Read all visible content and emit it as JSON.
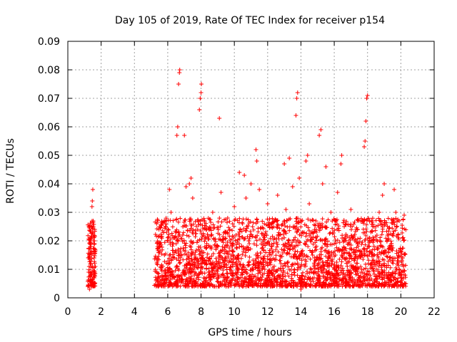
{
  "chart_data": {
    "type": "scatter",
    "title": "Day 105 of 2019, Rate Of TEC Index for receiver p154",
    "xlabel": "GPS time / hours",
    "ylabel": "ROTI / TECUs",
    "xlim": [
      0,
      22
    ],
    "ylim": [
      0,
      0.09
    ],
    "x_ticks": [
      0,
      2,
      4,
      6,
      8,
      10,
      12,
      14,
      16,
      18,
      20,
      22
    ],
    "y_ticks": [
      0,
      0.01,
      0.02,
      0.03,
      0.04,
      0.05,
      0.06,
      0.07,
      0.08,
      0.09
    ],
    "y_tick_labels": [
      "0",
      "0.01",
      "0.02",
      "0.03",
      "0.04",
      "0.05",
      "0.06",
      "0.07",
      "0.08",
      "0.09"
    ],
    "x_tick_labels": [
      "0",
      "2",
      "4",
      "6",
      "8",
      "10",
      "12",
      "14",
      "16",
      "18",
      "20",
      "22"
    ],
    "grid": true,
    "marker": "+",
    "marker_color": "#ff0000",
    "series": [
      {
        "name": "ROTI",
        "points": [
          [
            1.2,
            0.004
          ],
          [
            1.25,
            0.009
          ],
          [
            1.3,
            0.015
          ],
          [
            1.32,
            0.021
          ],
          [
            1.35,
            0.012
          ],
          [
            1.38,
            0.006
          ],
          [
            1.4,
            0.018
          ],
          [
            1.42,
            0.025
          ],
          [
            1.45,
            0.032
          ],
          [
            1.47,
            0.034
          ],
          [
            1.5,
            0.038
          ],
          [
            1.52,
            0.027
          ],
          [
            1.55,
            0.02
          ],
          [
            1.58,
            0.014
          ],
          [
            1.6,
            0.008
          ],
          [
            1.62,
            0.024
          ],
          [
            1.65,
            0.011
          ],
          [
            1.3,
            0.003
          ],
          [
            1.5,
            0.005
          ],
          [
            1.6,
            0.019
          ],
          [
            5.3,
            0.006
          ],
          [
            5.35,
            0.012
          ],
          [
            5.4,
            0.018
          ],
          [
            5.5,
            0.025
          ],
          [
            5.6,
            0.01
          ],
          [
            5.8,
            0.015
          ],
          [
            6.0,
            0.02
          ],
          [
            6.1,
            0.038
          ],
          [
            6.2,
            0.03
          ],
          [
            6.3,
            0.009
          ],
          [
            6.5,
            0.016
          ],
          [
            6.55,
            0.057
          ],
          [
            6.6,
            0.06
          ],
          [
            6.65,
            0.075
          ],
          [
            6.7,
            0.079
          ],
          [
            6.72,
            0.08
          ],
          [
            6.75,
            0.014
          ],
          [
            6.9,
            0.022
          ],
          [
            7.0,
            0.057
          ],
          [
            7.1,
            0.039
          ],
          [
            7.2,
            0.012
          ],
          [
            7.3,
            0.04
          ],
          [
            7.4,
            0.042
          ],
          [
            7.5,
            0.035
          ],
          [
            7.6,
            0.008
          ],
          [
            7.8,
            0.02
          ],
          [
            7.9,
            0.066
          ],
          [
            7.95,
            0.07
          ],
          [
            8.0,
            0.072
          ],
          [
            8.02,
            0.075
          ],
          [
            8.1,
            0.013
          ],
          [
            8.3,
            0.024
          ],
          [
            8.5,
            0.009
          ],
          [
            8.7,
            0.03
          ],
          [
            8.9,
            0.017
          ],
          [
            9.1,
            0.063
          ],
          [
            9.2,
            0.037
          ],
          [
            9.4,
            0.011
          ],
          [
            9.6,
            0.028
          ],
          [
            9.8,
            0.015
          ],
          [
            10.0,
            0.032
          ],
          [
            10.1,
            0.022
          ],
          [
            10.3,
            0.044
          ],
          [
            10.4,
            0.008
          ],
          [
            10.6,
            0.043
          ],
          [
            10.7,
            0.035
          ],
          [
            10.9,
            0.019
          ],
          [
            11.0,
            0.04
          ],
          [
            11.1,
            0.01
          ],
          [
            11.3,
            0.052
          ],
          [
            11.35,
            0.048
          ],
          [
            11.5,
            0.038
          ],
          [
            11.6,
            0.014
          ],
          [
            11.8,
            0.026
          ],
          [
            12.0,
            0.033
          ],
          [
            12.2,
            0.009
          ],
          [
            12.4,
            0.021
          ],
          [
            12.6,
            0.036
          ],
          [
            12.8,
            0.012
          ],
          [
            13.0,
            0.047
          ],
          [
            13.1,
            0.031
          ],
          [
            13.3,
            0.049
          ],
          [
            13.5,
            0.039
          ],
          [
            13.6,
            0.018
          ],
          [
            13.7,
            0.064
          ],
          [
            13.75,
            0.07
          ],
          [
            13.8,
            0.072
          ],
          [
            13.9,
            0.042
          ],
          [
            14.0,
            0.003
          ],
          [
            14.1,
            0.023
          ],
          [
            14.3,
            0.048
          ],
          [
            14.4,
            0.05
          ],
          [
            14.5,
            0.033
          ],
          [
            14.7,
            0.015
          ],
          [
            14.9,
            0.027
          ],
          [
            15.1,
            0.057
          ],
          [
            15.2,
            0.059
          ],
          [
            15.3,
            0.04
          ],
          [
            15.5,
            0.046
          ],
          [
            15.6,
            0.011
          ],
          [
            15.8,
            0.03
          ],
          [
            16.0,
            0.019
          ],
          [
            16.2,
            0.037
          ],
          [
            16.4,
            0.047
          ],
          [
            16.45,
            0.05
          ],
          [
            16.6,
            0.025
          ],
          [
            16.8,
            0.009
          ],
          [
            17.0,
            0.031
          ],
          [
            17.2,
            0.016
          ],
          [
            17.4,
            0.024
          ],
          [
            17.6,
            0.006
          ],
          [
            17.8,
            0.053
          ],
          [
            17.85,
            0.055
          ],
          [
            17.9,
            0.062
          ],
          [
            17.95,
            0.07
          ],
          [
            18.0,
            0.071
          ],
          [
            18.1,
            0.018
          ],
          [
            18.3,
            0.013
          ],
          [
            18.5,
            0.025
          ],
          [
            18.7,
            0.03
          ],
          [
            18.9,
            0.036
          ],
          [
            19.0,
            0.04
          ],
          [
            19.2,
            0.022
          ],
          [
            19.4,
            0.008
          ],
          [
            19.6,
            0.038
          ],
          [
            19.7,
            0.03
          ],
          [
            19.8,
            0.014
          ],
          [
            19.9,
            0.027
          ],
          [
            20.0,
            0.009
          ],
          [
            20.1,
            0.021
          ],
          [
            20.2,
            0.029
          ],
          [
            20.3,
            0.005
          ]
        ]
      }
    ],
    "bands": [
      {
        "x_start": 1.2,
        "x_end": 1.65,
        "y_low": 0.004,
        "y_high": 0.027,
        "density": 140
      },
      {
        "x_start": 5.2,
        "x_end": 20.3,
        "y_low": 0.004,
        "y_high": 0.028,
        "density": 2600
      }
    ]
  }
}
